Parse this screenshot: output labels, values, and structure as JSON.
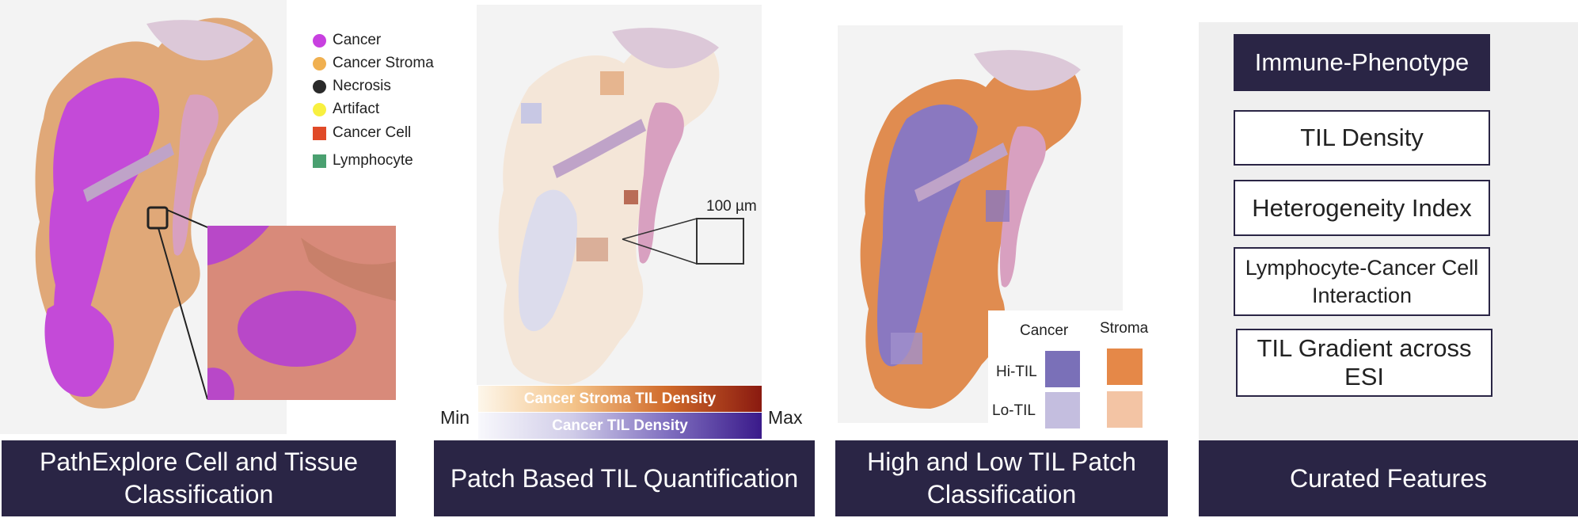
{
  "panel1": {
    "caption": "PathExplore Cell and Tissue\nClassification",
    "legend": [
      {
        "label": "Cancer",
        "color": "#c840e0",
        "shape": "circle"
      },
      {
        "label": "Cancer Stroma",
        "color": "#f0b050",
        "shape": "circle"
      },
      {
        "label": "Necrosis",
        "color": "#2a2a2a",
        "shape": "circle"
      },
      {
        "label": "Artifact",
        "color": "#f8f040",
        "shape": "circle"
      },
      {
        "label": "Cancer Cell",
        "color": "#e04a28",
        "shape": "square"
      },
      {
        "label": "Lymphocyte",
        "color": "#4aa070",
        "shape": "square"
      }
    ]
  },
  "panel2": {
    "caption": "Patch Based TIL Quantification",
    "scale_label": "100 µm",
    "bar_stroma": "Cancer Stroma TIL Density",
    "bar_cancer": "Cancer TIL Density",
    "min_label": "Min",
    "max_label": "Max"
  },
  "panel3": {
    "caption": "High and Low TIL Patch\nClassification",
    "col_cancer": "Cancer",
    "col_stroma": "Stroma",
    "row_hi": "Hi-TIL",
    "row_lo": "Lo-TIL",
    "colors": {
      "cancer_hi": "#7a70b8",
      "cancer_lo": "#c4bedf",
      "stroma_hi": "#e58848",
      "stroma_lo": "#f3c4a4"
    }
  },
  "panel4": {
    "caption": "Curated Features",
    "features": [
      "Immune-Phenotype",
      "TIL Density",
      "Heterogeneity Index",
      "Lymphocyte-Cancer Cell\nInteraction",
      "TIL Gradient across ESI"
    ]
  }
}
